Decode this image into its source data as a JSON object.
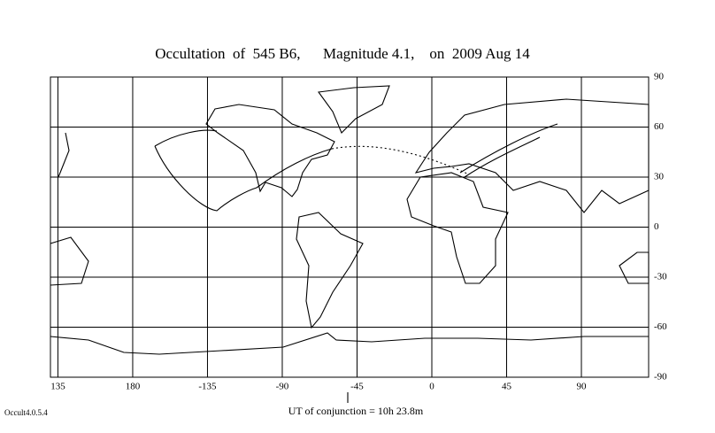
{
  "title": "Occultation  of  545 B6,      Magnitude 4.1,    on  2009 Aug 14",
  "map": {
    "lon_ticks": [
      135,
      180,
      -135,
      -90,
      -45,
      0,
      45,
      90
    ],
    "lat_ticks": [
      90,
      60,
      30,
      0,
      -30,
      -60,
      -90
    ]
  },
  "conjunction": "UT of conjunction = 10h 23.8m",
  "version": "Occult4.0.5.4"
}
